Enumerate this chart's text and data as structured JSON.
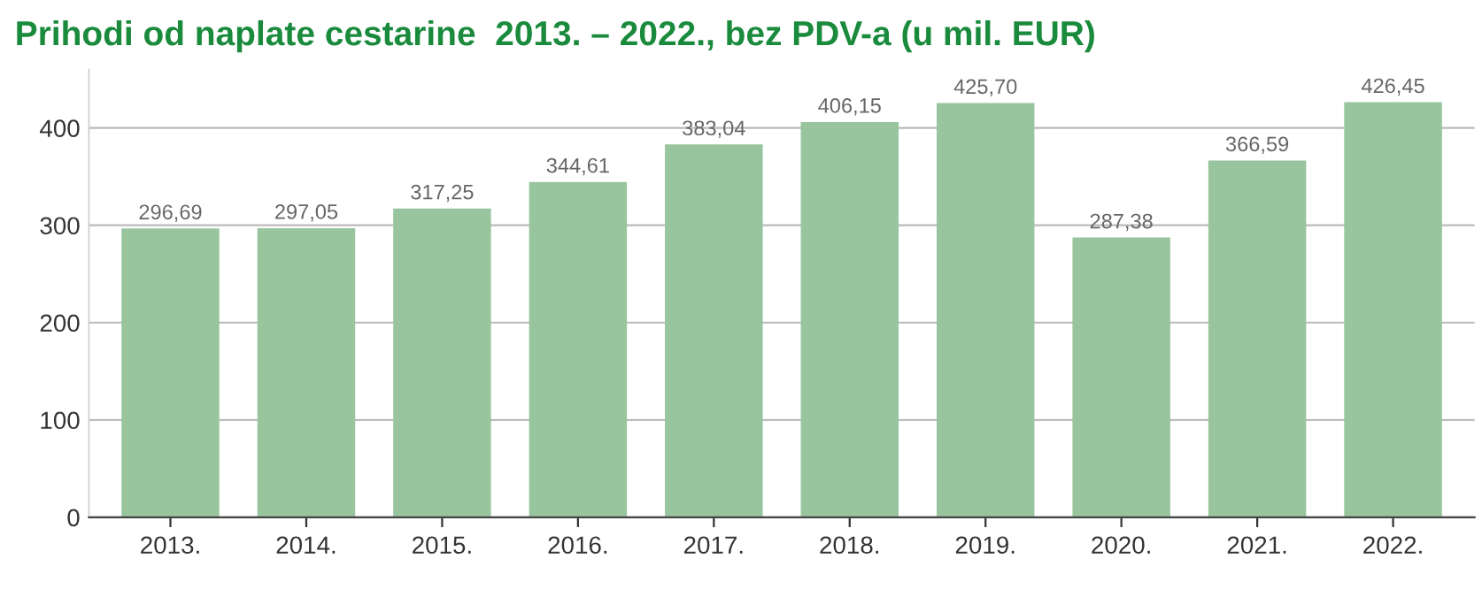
{
  "chart_data": {
    "type": "bar",
    "title": "Prihodi od naplate cestarine  2013. – 2022., bez PDV-a (u mil. EUR)",
    "categories": [
      "2013.",
      "2014.",
      "2015.",
      "2016.",
      "2017.",
      "2018.",
      "2019.",
      "2020.",
      "2021.",
      "2022."
    ],
    "values": [
      296.69,
      297.05,
      317.25,
      344.61,
      383.04,
      406.15,
      425.7,
      287.38,
      366.59,
      426.45
    ],
    "value_labels": [
      "296,69",
      "297,05",
      "317,25",
      "344,61",
      "383,04",
      "406,15",
      "425,70",
      "287,38",
      "366,59",
      "426,45"
    ],
    "color": "#98c59e",
    "ylim": [
      0,
      460
    ],
    "yticks": [
      0,
      100,
      200,
      300,
      400
    ],
    "grid": "y",
    "legend": false
  }
}
